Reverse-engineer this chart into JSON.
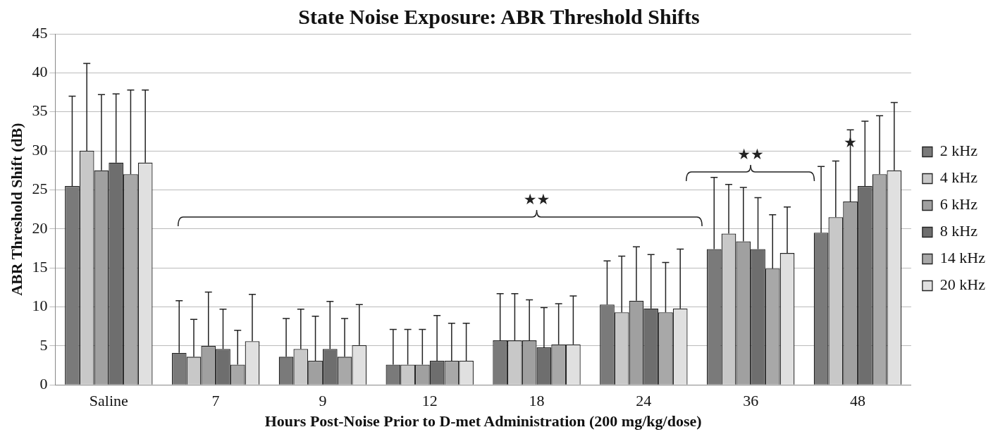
{
  "chart_data": {
    "type": "bar",
    "title": "State Noise Exposure: ABR Threshold Shifts",
    "xlabel": "Hours Post-Noise Prior to D-met Administration (200 mg/kg/dose)",
    "ylabel": "ABR Threshold Shift (dB)",
    "categories": [
      "Saline",
      "7",
      "9",
      "12",
      "18",
      "24",
      "36",
      "48"
    ],
    "series": [
      {
        "name": "2 kHz",
        "color": "#7a7a7a",
        "values": [
          25.5,
          4.1,
          3.6,
          2.6,
          5.7,
          10.3,
          17.4,
          19.5
        ],
        "errors": [
          [
            25.5,
            37
          ],
          [
            4.1,
            10.8
          ],
          [
            3.6,
            8.5
          ],
          [
            2.6,
            7.1
          ],
          [
            5.7,
            11.7
          ],
          [
            10.3,
            15.9
          ],
          [
            17.4,
            26.6
          ],
          [
            19.5,
            28
          ]
        ]
      },
      {
        "name": "4 kHz",
        "color": "#c8c8c8",
        "values": [
          30,
          3.6,
          4.6,
          2.6,
          5.7,
          9.3,
          19.4,
          21.5
        ],
        "errors": [
          [
            30,
            41.2
          ],
          [
            3.6,
            8.4
          ],
          [
            4.6,
            9.7
          ],
          [
            2.6,
            7.1
          ],
          [
            5.7,
            11.7
          ],
          [
            9.3,
            16.5
          ],
          [
            19.4,
            25.7
          ],
          [
            21.5,
            28.7
          ]
        ]
      },
      {
        "name": "6 kHz",
        "color": "#a0a0a0",
        "values": [
          27.5,
          5,
          3.1,
          2.6,
          5.7,
          10.8,
          18.4,
          23.5
        ],
        "errors": [
          [
            27.5,
            37.2
          ],
          [
            5,
            11.9
          ],
          [
            3.1,
            8.8
          ],
          [
            2.6,
            7.1
          ],
          [
            5.7,
            10.9
          ],
          [
            10.8,
            17.7
          ],
          [
            18.4,
            25.3
          ],
          [
            23.5,
            32.7
          ]
        ]
      },
      {
        "name": "8 kHz",
        "color": "#6e6e6e",
        "values": [
          28.5,
          4.6,
          4.6,
          3.1,
          4.8,
          9.8,
          17.4,
          25.5
        ],
        "errors": [
          [
            28.5,
            37.3
          ],
          [
            4.6,
            9.7
          ],
          [
            4.6,
            10.7
          ],
          [
            3.1,
            8.9
          ],
          [
            4.8,
            9.9
          ],
          [
            9.8,
            16.7
          ],
          [
            17.4,
            24
          ],
          [
            25.5,
            33.8
          ]
        ]
      },
      {
        "name": "14 kHz",
        "color": "#a8a8a8",
        "values": [
          27,
          2.6,
          3.6,
          3.1,
          5.2,
          9.3,
          14.9,
          27
        ],
        "errors": [
          [
            27,
            37.8
          ],
          [
            2.6,
            7
          ],
          [
            3.6,
            8.5
          ],
          [
            3.1,
            7.9
          ],
          [
            5.2,
            10.4
          ],
          [
            9.3,
            15.7
          ],
          [
            14.9,
            21.8
          ],
          [
            27,
            34.5
          ]
        ]
      },
      {
        "name": "20 kHz",
        "color": "#e0e0e0",
        "values": [
          28.5,
          5.6,
          5.1,
          3.1,
          5.2,
          9.8,
          16.9,
          27.5
        ],
        "errors": [
          [
            28.5,
            37.8
          ],
          [
            5.6,
            11.6
          ],
          [
            5.1,
            10.3
          ],
          [
            3.1,
            7.9
          ],
          [
            5.2,
            11.4
          ],
          [
            9.8,
            17.4
          ],
          [
            16.9,
            22.8
          ],
          [
            27.5,
            36.2
          ]
        ]
      }
    ],
    "ylim": [
      0,
      45
    ],
    "yticks": [
      0,
      5,
      10,
      15,
      20,
      25,
      30,
      35,
      40,
      45
    ],
    "grid": "y",
    "legend": "right",
    "annotations": [
      "★★",
      "★★",
      "★"
    ]
  }
}
